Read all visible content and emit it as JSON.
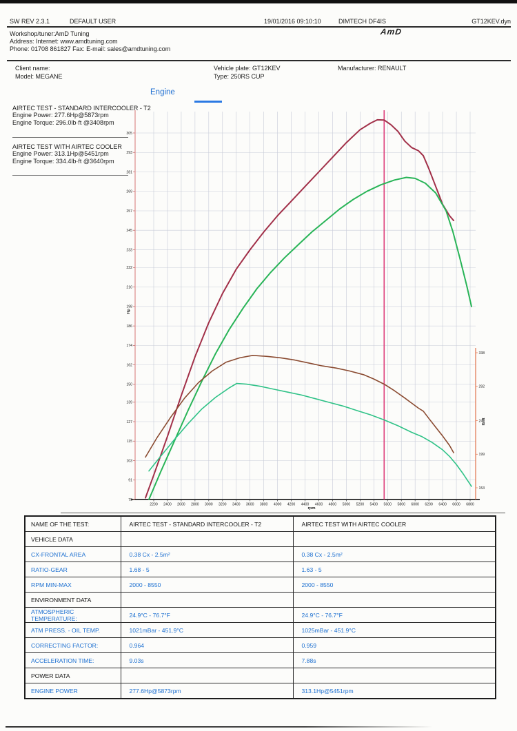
{
  "header": {
    "sw_rev": "SW REV 2.3.1",
    "user": "DEFAULT USER",
    "datetime": "19/01/2016 09:10:10",
    "device": "DIMTECH DF4IS",
    "filename": "GT12KEV.dyn",
    "workshop": "Workshop/tuner:AmD Tuning",
    "address": "Address:  Internet: www.amdtuning.com",
    "phone": "Phone: 01708 861827 Fax:  E-mail: sales@amdtuning.com",
    "logo": "AmD"
  },
  "vehicle": {
    "client_label": "Client name:",
    "model": "Model: MEGANE",
    "plate": "Vehicle plate: GT12KEV",
    "type": "Type: 250RS CUP",
    "manufacturer": "Manufacturer: RENAULT"
  },
  "tab": {
    "label": "Engine"
  },
  "legend": [
    {
      "title": "AIRTEC TEST - STANDARD INTERCOOLER - T2",
      "power": "Engine Power: 277.6Hp@5873rpm",
      "torque": "Engine Torque: 296.0lb·ft @3408rpm"
    },
    {
      "title": "AIRTEC TEST WITH AIRTEC COOLER",
      "power": "Engine Power: 313.1Hp@5451rpm",
      "torque": "Engine Torque: 334.4lb·ft @3640rpm"
    }
  ],
  "chart_data": {
    "type": "line",
    "xlabel": "rpm",
    "ylabel_left": "Hp",
    "ylabel_right": "lb·ft",
    "x_ticks": [
      2200,
      2400,
      2600,
      2800,
      3000,
      3200,
      3400,
      3600,
      3800,
      4000,
      4200,
      4400,
      4600,
      4800,
      5000,
      5200,
      5400,
      5600,
      5800,
      6000,
      6200,
      6400,
      6600,
      6800
    ],
    "y_ticks_left": [
      79,
      91,
      103,
      115,
      127,
      139,
      150,
      162,
      174,
      186,
      198,
      210,
      222,
      233,
      245,
      257,
      269,
      281,
      293,
      305
    ],
    "y_ticks_right": [
      338,
      292,
      245,
      199,
      153
    ],
    "xlim": [
      1930,
      6880
    ],
    "ylim_left": [
      75,
      318
    ],
    "ylim_right": [
      140,
      354
    ],
    "grid": true,
    "cursor_rpm": 5550,
    "axis_colors": {
      "left": "#dd8a8a",
      "bottom": "#222222",
      "right": "#e0714a",
      "cursor": "#dd3d7b",
      "grid": "#c7cbd8"
    },
    "series": [
      {
        "id": "airtec-cooler-power",
        "name": "AIRTEC TEST WITH AIRTEC COOLER - Engine Power (Hp)",
        "axis": "left",
        "unit": "Hp",
        "color": "#a12f48",
        "width": 2,
        "peak": "313.1Hp@5451rpm",
        "points": [
          [
            2080,
            80
          ],
          [
            2200,
            94
          ],
          [
            2400,
            118
          ],
          [
            2600,
            143
          ],
          [
            2800,
            167
          ],
          [
            3000,
            188
          ],
          [
            3200,
            206
          ],
          [
            3400,
            221
          ],
          [
            3600,
            233
          ],
          [
            3800,
            244
          ],
          [
            4000,
            254
          ],
          [
            4200,
            263
          ],
          [
            4400,
            272
          ],
          [
            4600,
            281
          ],
          [
            4800,
            290
          ],
          [
            5000,
            299
          ],
          [
            5200,
            307
          ],
          [
            5350,
            311
          ],
          [
            5451,
            313.1
          ],
          [
            5550,
            313
          ],
          [
            5650,
            310
          ],
          [
            5750,
            306
          ],
          [
            5850,
            300
          ],
          [
            5950,
            296
          ],
          [
            6050,
            294
          ],
          [
            6120,
            291
          ],
          [
            6200,
            283
          ],
          [
            6300,
            272
          ],
          [
            6400,
            261
          ],
          [
            6500,
            254
          ],
          [
            6560,
            251
          ]
        ]
      },
      {
        "id": "standard-power",
        "name": "AIRTEC TEST - STANDARD INTERCOOLER - T2 - Engine Power (Hp)",
        "axis": "left",
        "unit": "Hp",
        "color": "#28b457",
        "width": 2,
        "peak": "277.6Hp@5873rpm",
        "points": [
          [
            2130,
            79
          ],
          [
            2300,
            96
          ],
          [
            2500,
            115
          ],
          [
            2700,
            134
          ],
          [
            2900,
            152
          ],
          [
            3100,
            169
          ],
          [
            3300,
            184
          ],
          [
            3500,
            197
          ],
          [
            3700,
            209
          ],
          [
            3900,
            219
          ],
          [
            4100,
            228
          ],
          [
            4300,
            236
          ],
          [
            4500,
            244
          ],
          [
            4700,
            251
          ],
          [
            4900,
            258
          ],
          [
            5100,
            264
          ],
          [
            5300,
            269
          ],
          [
            5500,
            273
          ],
          [
            5700,
            276
          ],
          [
            5873,
            277.6
          ],
          [
            6000,
            277
          ],
          [
            6150,
            274
          ],
          [
            6300,
            268
          ],
          [
            6450,
            257
          ],
          [
            6550,
            244
          ],
          [
            6650,
            228
          ],
          [
            6750,
            211
          ],
          [
            6820,
            198
          ]
        ]
      },
      {
        "id": "airtec-cooler-torque",
        "name": "AIRTEC TEST WITH AIRTEC COOLER - Engine Torque (lb·ft)",
        "axis": "right",
        "unit": "lb·ft",
        "color": "#8a4a30",
        "width": 1.6,
        "peak": "334.4lb·ft @3640rpm",
        "points": [
          [
            2080,
            195
          ],
          [
            2250,
            222
          ],
          [
            2450,
            250
          ],
          [
            2650,
            276
          ],
          [
            2850,
            297
          ],
          [
            3050,
            313
          ],
          [
            3250,
            325
          ],
          [
            3450,
            331
          ],
          [
            3640,
            334.4
          ],
          [
            3850,
            333
          ],
          [
            4050,
            331
          ],
          [
            4250,
            328
          ],
          [
            4450,
            324
          ],
          [
            4650,
            320
          ],
          [
            4850,
            317
          ],
          [
            5050,
            313
          ],
          [
            5250,
            308
          ],
          [
            5400,
            302
          ],
          [
            5550,
            295
          ],
          [
            5700,
            286
          ],
          [
            5850,
            276
          ],
          [
            5950,
            269
          ],
          [
            6050,
            262
          ],
          [
            6120,
            258
          ],
          [
            6200,
            248
          ],
          [
            6300,
            236
          ],
          [
            6400,
            224
          ],
          [
            6500,
            211
          ],
          [
            6560,
            201
          ]
        ]
      },
      {
        "id": "standard-torque",
        "name": "AIRTEC TEST - STANDARD INTERCOOLER - T2 - Engine Torque (lb·ft)",
        "axis": "right",
        "unit": "lb·ft",
        "color": "#2fc287",
        "width": 1.6,
        "peak": "296.0lb·ft @3408rpm",
        "points": [
          [
            2130,
            176
          ],
          [
            2300,
            196
          ],
          [
            2500,
            219
          ],
          [
            2700,
            241
          ],
          [
            2900,
            261
          ],
          [
            3100,
            277
          ],
          [
            3300,
            290
          ],
          [
            3408,
            296
          ],
          [
            3550,
            295
          ],
          [
            3750,
            292
          ],
          [
            3950,
            288
          ],
          [
            4150,
            284
          ],
          [
            4350,
            280
          ],
          [
            4550,
            275
          ],
          [
            4750,
            270
          ],
          [
            4950,
            265
          ],
          [
            5150,
            259
          ],
          [
            5350,
            253
          ],
          [
            5550,
            246
          ],
          [
            5750,
            238
          ],
          [
            5950,
            229
          ],
          [
            6100,
            223
          ],
          [
            6250,
            215
          ],
          [
            6400,
            205
          ],
          [
            6500,
            196
          ],
          [
            6600,
            185
          ],
          [
            6700,
            172
          ],
          [
            6820,
            155
          ]
        ]
      }
    ]
  },
  "table": {
    "rows": [
      {
        "type": "hdr",
        "label": "NAME OF THE TEST:",
        "col1": "AIRTEC TEST - STANDARD INTERCOOLER - T2",
        "col2": "AIRTEC TEST WITH AIRTEC COOLER"
      },
      {
        "type": "sec",
        "label": "VEHICLE DATA",
        "col1": "",
        "col2": ""
      },
      {
        "type": "dat",
        "label": "CX-FRONTAL AREA",
        "col1": "0.38 Cx - 2.5m²",
        "col2": "0.38 Cx - 2.5m²"
      },
      {
        "type": "dat",
        "label": "RATIO-GEAR",
        "col1": "1.68 - 5",
        "col2": "1.63 - 5"
      },
      {
        "type": "dat",
        "label": "RPM MIN-MAX",
        "col1": "2000 - 8550",
        "col2": "2000 - 8550"
      },
      {
        "type": "sec",
        "label": "ENVIRONMENT DATA",
        "col1": "",
        "col2": ""
      },
      {
        "type": "dat",
        "label": "ATMOSPHERIC TEMPERATURE:",
        "col1": "24.9°C - 76.7°F",
        "col2": "24.9°C - 76.7°F"
      },
      {
        "type": "dat",
        "label": "ATM PRESS. - OIL TEMP.",
        "col1": "1021mBar - 451.9°C",
        "col2": "1025mBar - 451.9°C"
      },
      {
        "type": "dat",
        "label": "CORRECTING FACTOR:",
        "col1": "0.964",
        "col2": "0.959"
      },
      {
        "type": "dat",
        "label": "ACCELERATION TIME:",
        "col1": "9.03s",
        "col2": "7.88s"
      },
      {
        "type": "sec",
        "label": "POWER DATA",
        "col1": "",
        "col2": ""
      },
      {
        "type": "dat",
        "label": "ENGINE POWER",
        "col1": "277.6Hp@5873rpm",
        "col2": "313.1Hp@5451rpm"
      }
    ]
  }
}
